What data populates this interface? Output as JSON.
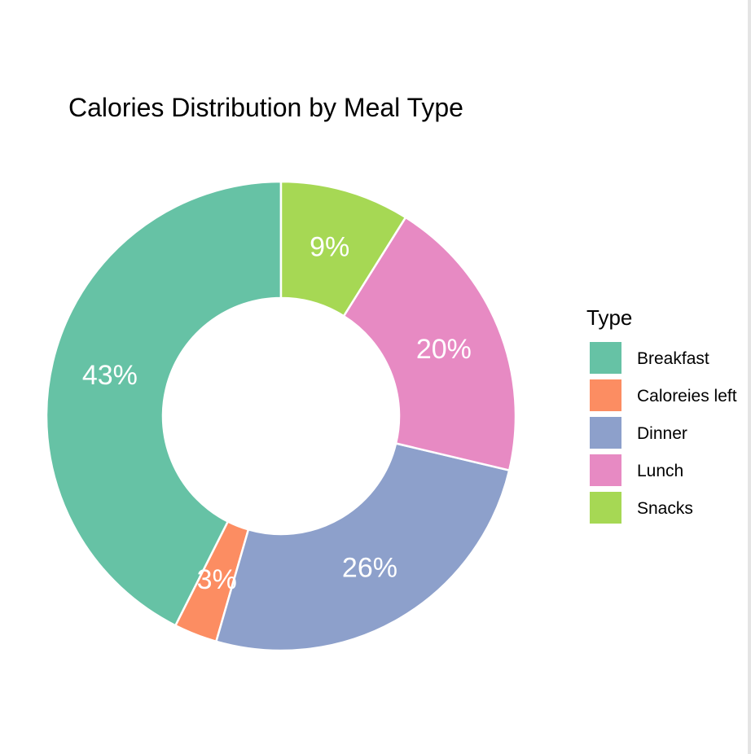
{
  "chart_data": {
    "type": "pie",
    "donut": true,
    "title": "Calories Distribution by Meal Type",
    "legend": {
      "title": "Type",
      "position": "right"
    },
    "start": "top",
    "direction": "counterclockwise",
    "slices": [
      {
        "category": "Breakfast",
        "value": 43,
        "label": "43%",
        "color": "#66c2a5"
      },
      {
        "category": "Caloreies left",
        "value": 3,
        "label": "3%",
        "color": "#fc8d62"
      },
      {
        "category": "Dinner",
        "value": 26,
        "label": "26%",
        "color": "#8da0cb"
      },
      {
        "category": "Lunch",
        "value": 20,
        "label": "20%",
        "color": "#e78ac3"
      },
      {
        "category": "Snacks",
        "value": 9,
        "label": "9%",
        "color": "#a6d854"
      }
    ]
  }
}
